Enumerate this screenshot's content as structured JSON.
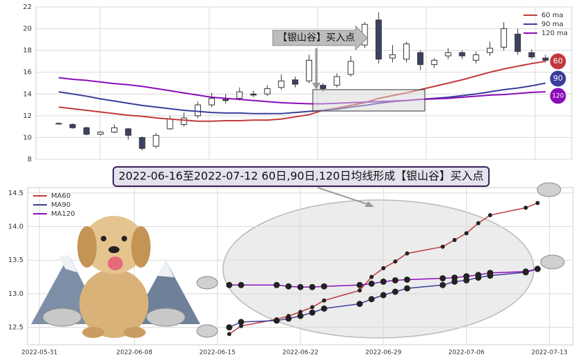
{
  "chart_data": [
    {
      "type": "candlestick",
      "open": [
        11.3,
        11.2,
        10.9,
        10.3,
        10.5,
        10.8,
        10.0,
        9.2,
        10.8,
        11.2,
        12.0,
        13.0,
        13.5,
        13.6,
        14.0,
        14.0,
        14.6,
        15.3,
        15.2,
        14.8,
        14.8,
        15.8,
        18.5,
        20.8,
        17.3,
        17.2,
        17.8,
        16.7,
        17.5,
        17.8,
        17.1,
        17.8,
        18.3,
        19.5,
        17.8,
        17.3
      ],
      "high": [
        11.4,
        11.3,
        11.0,
        10.6,
        11.2,
        10.9,
        10.1,
        10.4,
        12.0,
        12.3,
        13.3,
        14.1,
        14.0,
        14.6,
        14.3,
        14.8,
        15.8,
        15.6,
        17.6,
        15.0,
        15.9,
        17.5,
        20.6,
        21.5,
        18.5,
        18.8,
        18.0,
        17.3,
        18.2,
        18.0,
        17.9,
        18.8,
        20.6,
        20.0,
        18.1,
        17.6
      ],
      "low": [
        11.2,
        10.8,
        10.2,
        10.2,
        10.4,
        9.8,
        8.8,
        9.0,
        10.7,
        11.0,
        11.8,
        12.8,
        13.1,
        13.4,
        13.7,
        13.8,
        14.4,
        14.6,
        15.0,
        14.2,
        14.6,
        15.6,
        18.2,
        16.8,
        16.9,
        16.9,
        16.2,
        16.4,
        17.2,
        17.2,
        16.8,
        17.5,
        18.0,
        17.6,
        17.2,
        16.9
      ],
      "close": [
        11.3,
        10.9,
        10.3,
        10.5,
        10.9,
        10.2,
        9.0,
        10.2,
        11.7,
        11.8,
        13.0,
        13.6,
        13.4,
        14.2,
        13.9,
        14.5,
        15.2,
        14.9,
        17.1,
        14.5,
        15.6,
        17.0,
        20.4,
        17.2,
        17.6,
        18.6,
        16.7,
        17.1,
        17.8,
        17.5,
        17.6,
        18.2,
        20.0,
        17.9,
        17.4,
        17.1
      ],
      "up_color": "#ffffff",
      "down_color": "#3b4262",
      "series": [
        {
          "name": "60 ma",
          "tag": "60",
          "color": "#c0393b",
          "values": [
            12.8,
            12.65,
            12.5,
            12.35,
            12.2,
            12.05,
            11.95,
            11.8,
            11.7,
            11.6,
            11.5,
            11.5,
            11.55,
            11.55,
            11.6,
            11.6,
            11.7,
            11.9,
            12.1,
            12.5,
            12.7,
            12.95,
            13.2,
            13.6,
            13.85,
            14.1,
            14.4,
            14.7,
            15.0,
            15.3,
            15.65,
            16.0,
            16.3,
            16.55,
            16.8,
            17.0
          ]
        },
        {
          "name": "90 ma",
          "tag": "90",
          "color": "#3a3d9a",
          "values": [
            14.2,
            14.0,
            13.8,
            13.55,
            13.35,
            13.15,
            12.95,
            12.8,
            12.65,
            12.5,
            12.4,
            12.3,
            12.25,
            12.25,
            12.2,
            12.2,
            12.2,
            12.3,
            12.4,
            12.5,
            12.6,
            12.8,
            12.95,
            13.15,
            13.3,
            13.4,
            13.5,
            13.6,
            13.7,
            13.85,
            14.0,
            14.2,
            14.4,
            14.55,
            14.75,
            15.0
          ]
        },
        {
          "name": "120 ma",
          "tag": "120",
          "color": "#8a0cb8",
          "values": [
            15.5,
            15.35,
            15.25,
            15.1,
            14.95,
            14.85,
            14.7,
            14.5,
            14.3,
            14.1,
            13.9,
            13.7,
            13.6,
            13.5,
            13.4,
            13.3,
            13.2,
            13.15,
            13.1,
            13.1,
            13.15,
            13.2,
            13.25,
            13.3,
            13.35,
            13.4,
            13.5,
            13.55,
            13.6,
            13.7,
            13.8,
            13.9,
            13.95,
            14.05,
            14.15,
            14.2
          ]
        }
      ],
      "ylim": [
        8,
        22
      ],
      "yticks": [
        8,
        10,
        12,
        14,
        16,
        18,
        20,
        22
      ],
      "grid": true,
      "legend": "upper right",
      "annotation": "【银山谷】买入点"
    },
    {
      "type": "line",
      "x": [
        "2022-06-16",
        "2022-06-17",
        "2022-06-20",
        "2022-06-21",
        "2022-06-22",
        "2022-06-23",
        "2022-06-24",
        "2022-06-27",
        "2022-06-28",
        "2022-06-29",
        "2022-06-30",
        "2022-07-01",
        "2022-07-04",
        "2022-07-05",
        "2022-07-06",
        "2022-07-07",
        "2022-07-08",
        "2022-07-11",
        "2022-07-12"
      ],
      "series": [
        {
          "name": "MA60",
          "color": "#c0393b",
          "values": [
            12.4,
            12.52,
            12.62,
            12.67,
            12.73,
            12.8,
            12.9,
            13.05,
            13.25,
            13.38,
            13.48,
            13.6,
            13.7,
            13.8,
            13.9,
            14.05,
            14.17,
            14.28,
            14.35
          ]
        },
        {
          "name": "MA90",
          "color": "#3a3d9a",
          "values": [
            12.5,
            12.58,
            12.6,
            12.63,
            12.67,
            12.72,
            12.78,
            12.85,
            12.92,
            12.98,
            13.03,
            13.08,
            13.13,
            13.18,
            13.2,
            13.24,
            13.27,
            13.32,
            13.37
          ]
        },
        {
          "name": "MA120",
          "color": "#8a0cb8",
          "values": [
            13.13,
            13.13,
            13.13,
            13.11,
            13.1,
            13.1,
            13.11,
            13.13,
            13.15,
            13.18,
            13.2,
            13.21,
            13.23,
            13.24,
            13.26,
            13.28,
            13.31,
            13.33,
            13.37
          ]
        }
      ],
      "xlim": [
        "2022-05-30",
        "2022-07-15"
      ],
      "xticks": [
        "2022-05-31",
        "2022-06-08",
        "2022-06-15",
        "2022-06-22",
        "2022-06-29",
        "2022-07-06",
        "2022-07-13"
      ],
      "ylim": [
        12.24,
        14.58
      ],
      "yticks": [
        12.5,
        {
          "value": 13,
          "label": "13.0"
        },
        13.5,
        {
          "value": 14,
          "label": "14.0"
        },
        14.5
      ],
      "grid": true,
      "legend": "upper left",
      "annotation": "2022-06-16至2022-07-12 60日,90日,120日均线形成【银山谷】买入点"
    }
  ]
}
